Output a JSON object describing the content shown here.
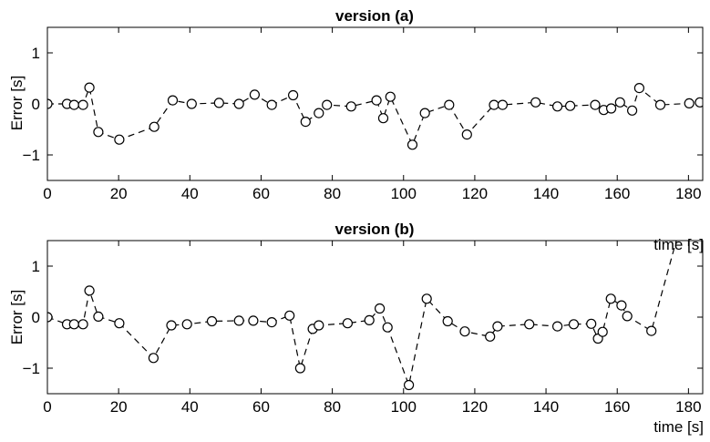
{
  "chart_data": [
    {
      "type": "line",
      "title": "version (a)",
      "xlabel": "time [s]",
      "ylabel": "Error [s]",
      "xlim": [
        0,
        184
      ],
      "ylim": [
        -1.5,
        1.5
      ],
      "xticks": [
        "0",
        "20",
        "40",
        "60",
        "80",
        "100",
        "120",
        "140",
        "160",
        "180"
      ],
      "yticks": [
        "1",
        "0",
        "−1"
      ],
      "grid": false,
      "marker": "open-circle",
      "line_style": "dashed",
      "color": "#000000",
      "x": [
        0,
        5.5,
        7.5,
        10,
        11.8,
        14.3,
        20.2,
        30,
        35.2,
        40.5,
        48.2,
        53.8,
        58.2,
        63,
        69,
        72.5,
        76.2,
        78.5,
        85.3,
        92.4,
        94.3,
        96.3,
        102.5,
        106,
        112.8,
        117.8,
        125.4,
        127.8,
        137.1,
        143.2,
        146.8,
        153.8,
        156.2,
        158.3,
        160.8,
        164.2,
        166.2,
        172.1,
        180.2,
        183.2
      ],
      "y": [
        0.0,
        0.0,
        -0.02,
        -0.02,
        0.32,
        -0.55,
        -0.7,
        -0.45,
        0.07,
        0.0,
        0.02,
        0.0,
        0.18,
        -0.02,
        0.17,
        -0.35,
        -0.18,
        -0.02,
        -0.05,
        0.07,
        -0.28,
        0.14,
        -0.8,
        -0.18,
        -0.02,
        -0.6,
        -0.02,
        -0.02,
        0.03,
        -0.05,
        -0.04,
        -0.02,
        -0.12,
        -0.09,
        0.03,
        -0.13,
        0.31,
        -0.02,
        0.01,
        0.03
      ]
    },
    {
      "type": "line",
      "title": "version (b)",
      "xlabel": "time [s]",
      "ylabel": "Error [s]",
      "xlim": [
        0,
        184
      ],
      "ylim": [
        -1.5,
        1.5
      ],
      "xticks": [
        "0",
        "20",
        "40",
        "60",
        "80",
        "100",
        "120",
        "140",
        "160",
        "180"
      ],
      "yticks": [
        "1",
        "0",
        "−1"
      ],
      "grid": false,
      "marker": "open-circle",
      "line_style": "dashed",
      "color": "#000000",
      "x": [
        0,
        5.5,
        7.5,
        10,
        11.8,
        14.3,
        20.2,
        29.8,
        34.8,
        39.2,
        46.2,
        53.8,
        57.8,
        63,
        68,
        71,
        74.5,
        76.2,
        84.3,
        90.4,
        93.3,
        95.5,
        101.5,
        106.5,
        112.4,
        117.2,
        124.3,
        126.4,
        135.3,
        143.2,
        147.8,
        152.7,
        154.6,
        155.9,
        158.2,
        161.2,
        162.8,
        169.6,
        177
      ],
      "y": [
        0.0,
        -0.14,
        -0.14,
        -0.14,
        0.52,
        0.01,
        -0.12,
        -0.8,
        -0.16,
        -0.14,
        -0.08,
        -0.07,
        -0.07,
        -0.1,
        0.03,
        -1.0,
        -0.23,
        -0.16,
        -0.12,
        -0.06,
        0.17,
        -0.2,
        -1.33,
        0.36,
        -0.08,
        -0.28,
        -0.38,
        -0.18,
        -0.14,
        -0.18,
        -0.14,
        -0.13,
        -0.42,
        -0.29,
        0.36,
        0.23,
        0.02,
        -0.27,
        1.6
      ]
    }
  ]
}
